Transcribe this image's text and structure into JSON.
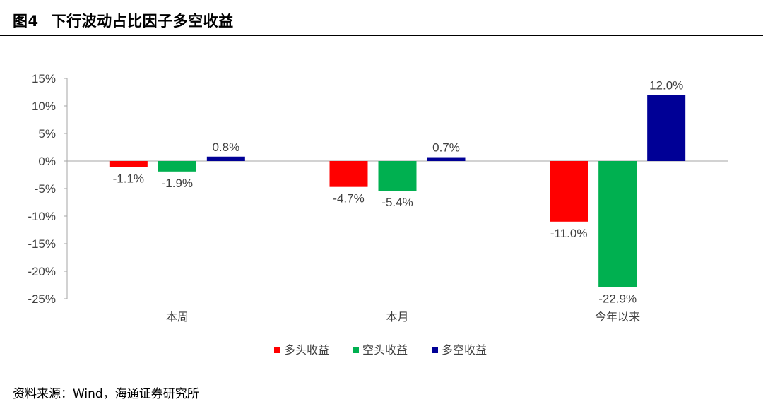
{
  "figure": {
    "number": "图4",
    "title": "下行波动占比因子多空收益"
  },
  "source": "资料来源：Wind，海通证券研究所",
  "colors": {
    "long": "#ff0000",
    "short": "#00b050",
    "long_short": "#000096",
    "axis": "#a6a6a6",
    "text": "#404040"
  },
  "chart_data": {
    "type": "bar",
    "categories": [
      "本周",
      "本月",
      "今年以来"
    ],
    "series": [
      {
        "name": "多头收益",
        "values": [
          -1.1,
          -4.7,
          -11.0
        ],
        "labels": [
          "-1.1%",
          "-4.7%",
          "-11.0%"
        ]
      },
      {
        "name": "空头收益",
        "values": [
          -1.9,
          -5.4,
          -22.9
        ],
        "labels": [
          "-1.9%",
          "-5.4%",
          "-22.9%"
        ]
      },
      {
        "name": "多空收益",
        "values": [
          0.8,
          0.7,
          12.0
        ],
        "labels": [
          "0.8%",
          "0.7%",
          "12.0%"
        ]
      }
    ],
    "ylim": [
      -25,
      15
    ],
    "yticks": [
      15,
      10,
      5,
      0,
      -5,
      -10,
      -15,
      -20,
      -25
    ],
    "ytick_labels": [
      "15%",
      "10%",
      "5%",
      "0%",
      "-5%",
      "-10%",
      "-15%",
      "-20%",
      "-25%"
    ],
    "grid": false,
    "legend": "bottom"
  }
}
